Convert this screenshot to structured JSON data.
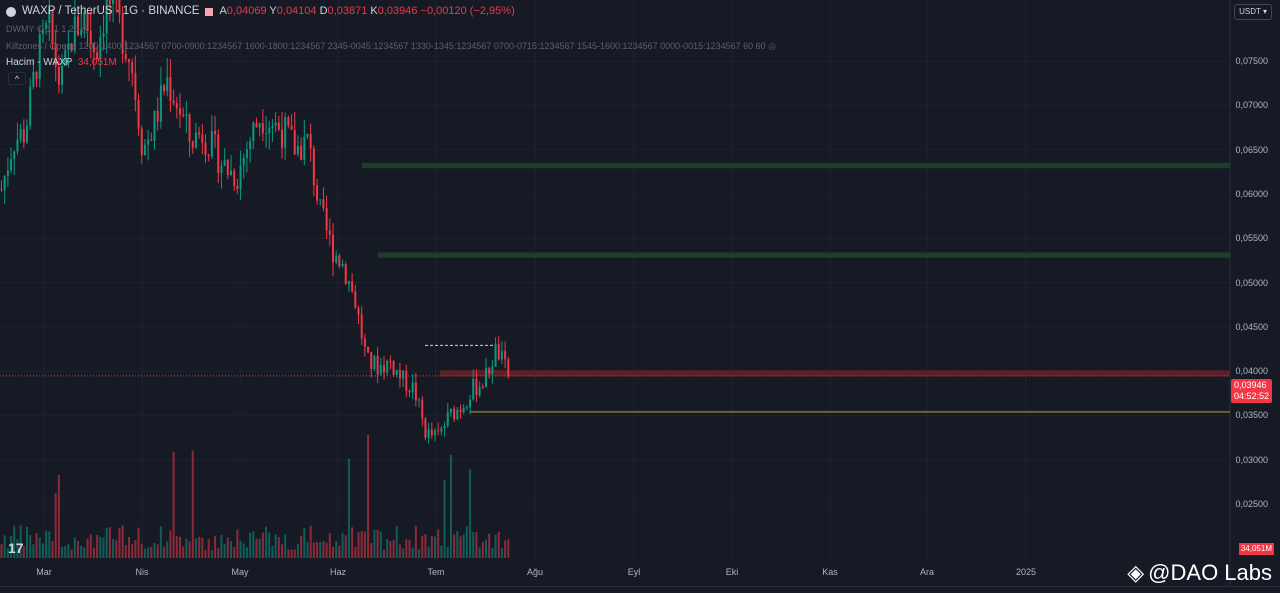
{
  "header": {
    "symbol": "WAXP / TetherUS · 1G · BINANCE",
    "ohlc": [
      {
        "k": "A",
        "v": "0,04069"
      },
      {
        "k": "Y",
        "v": "0,04104"
      },
      {
        "k": "D",
        "v": "0,03871"
      },
      {
        "k": "K",
        "v": "0,03946"
      }
    ],
    "change": "−0,00120 (−2,95%)"
  },
  "indicators": {
    "dwmy": "DWMY O 1 1 1 20",
    "killzones": "Killzones / Opens 1200-1400:1234567 0700-0900:1234567 1600-1800:1234567 2345-0045:1234567 1330-1345:1234567 0700-0715:1234567 1545-1600:1234567 0000-0015:1234567 60 60",
    "volume_label": "Hacim - WAXP",
    "volume_value": "34,051M",
    "collapse": "^"
  },
  "axis": {
    "currency": "USDT",
    "y_labels": [
      "0,07500",
      "0,07000",
      "0,06500",
      "0,06000",
      "0,05500",
      "0,05000",
      "0,04500",
      "0,04000",
      "0,03500",
      "0,03000",
      "0,02500"
    ],
    "last_price": "0,03946",
    "countdown": "04:52:52",
    "volume_tag": "34,051M",
    "x_labels": [
      "Mar",
      "Nis",
      "May",
      "Haz",
      "Tem",
      "Ağu",
      "Eyl",
      "Eki",
      "Kas",
      "Ara",
      "2025"
    ]
  },
  "chart_data": {
    "type": "candlestick",
    "ylim": [
      0.022,
      0.082
    ],
    "price_path": [
      0.0605,
      0.066,
      0.067,
      0.075,
      0.079,
      0.072,
      0.078,
      0.08,
      0.076,
      0.082,
      0.079,
      0.075,
      0.065,
      0.068,
      0.073,
      0.07,
      0.066,
      0.067,
      0.065,
      0.063,
      0.062,
      0.066,
      0.069,
      0.068,
      0.067,
      0.065,
      0.066,
      0.058,
      0.054,
      0.052,
      0.048,
      0.041,
      0.0405,
      0.041,
      0.039,
      0.038,
      0.033,
      0.0325,
      0.035,
      0.036,
      0.038,
      0.039,
      0.0425,
      0.0395
    ],
    "zones": [
      {
        "type": "supply",
        "low": 0.0629,
        "high": 0.0635,
        "color": "#1f3d2b"
      },
      {
        "type": "supply",
        "low": 0.0528,
        "high": 0.0534,
        "color": "#1f3d2b"
      },
      {
        "type": "resistance",
        "low": 0.0394,
        "high": 0.0401,
        "color": "#5c1f28"
      }
    ],
    "levels": [
      {
        "price": 0.0354,
        "color": "#6b6524"
      },
      {
        "price": 0.0429,
        "color": "#d1d4dc",
        "style": "dashed"
      }
    ],
    "colors": {
      "up": "#089981",
      "down": "#f23645"
    }
  },
  "watermark": "@DAO Labs",
  "logo": "TV"
}
